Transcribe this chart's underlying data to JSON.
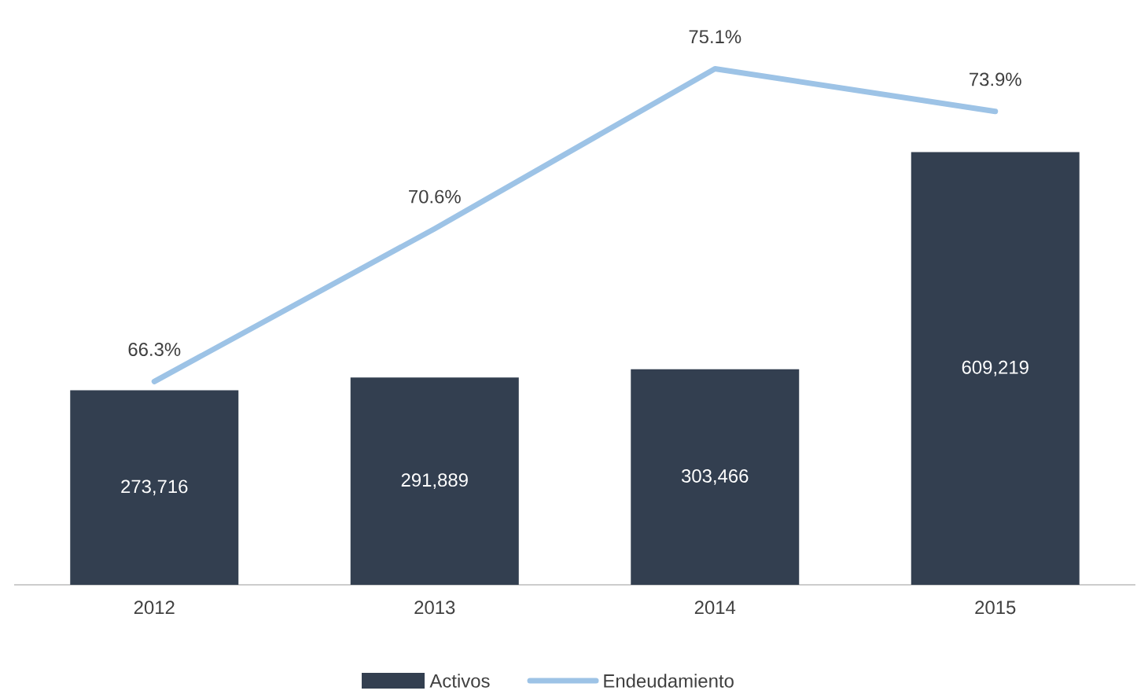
{
  "chart_data": {
    "type": "bar",
    "categories": [
      "2012",
      "2013",
      "2014",
      "2015"
    ],
    "series": [
      {
        "name": "Activos",
        "color": "#333f50",
        "values": [
          273716,
          291889,
          303466,
          609219
        ],
        "value_labels": [
          "273,716",
          "291,889",
          "303,466",
          "609,219"
        ]
      },
      {
        "name": "Endeudamiento",
        "type": "line",
        "axis": "y2",
        "color": "#9dc3e6",
        "values": [
          66.3,
          70.6,
          75.1,
          73.9
        ],
        "value_labels": [
          "66.3%",
          "70.6%",
          "75.1%",
          "73.9%"
        ]
      }
    ],
    "legend": "bottom",
    "grid": false
  }
}
